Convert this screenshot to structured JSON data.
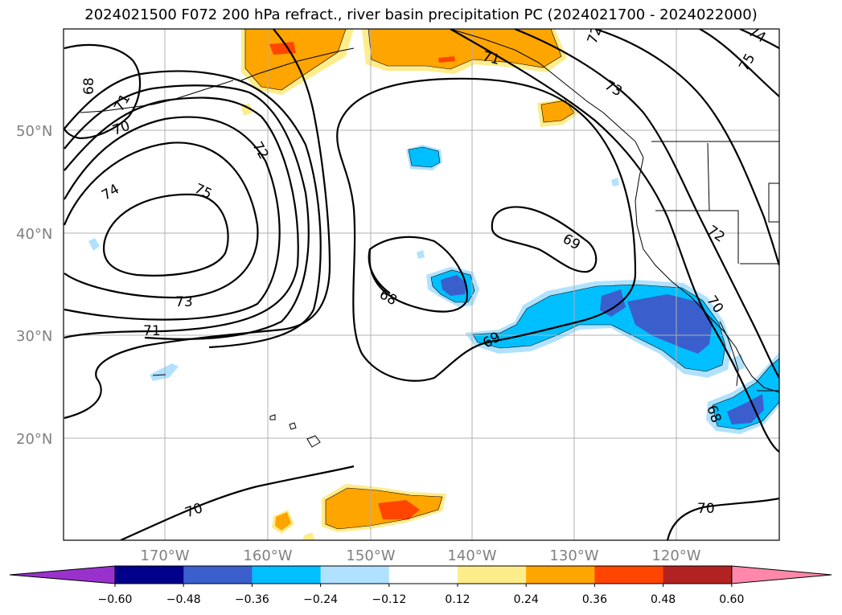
{
  "title": "2024021500 F072 200 hPa refract., river basin precipitation PC (2024021700 - 2024022000)",
  "lat_labels": [
    "50°N",
    "40°N",
    "30°N",
    "20°N"
  ],
  "lon_labels": [
    "170°W",
    "160°W",
    "150°W",
    "140°W",
    "130°W",
    "120°W"
  ],
  "colorbar": {
    "ticks": [
      "−0.60",
      "−0.48",
      "−0.36",
      "−0.24",
      "−0.12",
      "0.12",
      "0.24",
      "0.36",
      "0.48",
      "0.60"
    ],
    "colors": [
      "#9932cc",
      "#00008b",
      "#3a5fcd",
      "#00bfff",
      "#b0e2ff",
      "#ffffff",
      "#ffec8b",
      "#ffa500",
      "#ff4500",
      "#b22222",
      "#ff88aa"
    ]
  },
  "contour_labels": [
    "68",
    "69",
    "70",
    "71",
    "72",
    "73",
    "74",
    "75",
    "71",
    "73",
    "75",
    "72",
    "74",
    "71",
    "72",
    "70",
    "68",
    "69",
    "70",
    "68"
  ],
  "colors": {
    "positive_orange": "#ffa500",
    "positive_red": "#ff4500",
    "positive_yellow": "#ffec8b",
    "negative_light": "#b0e2ff",
    "negative_cyan": "#00bfff",
    "negative_blue": "#3a5fcd"
  }
}
